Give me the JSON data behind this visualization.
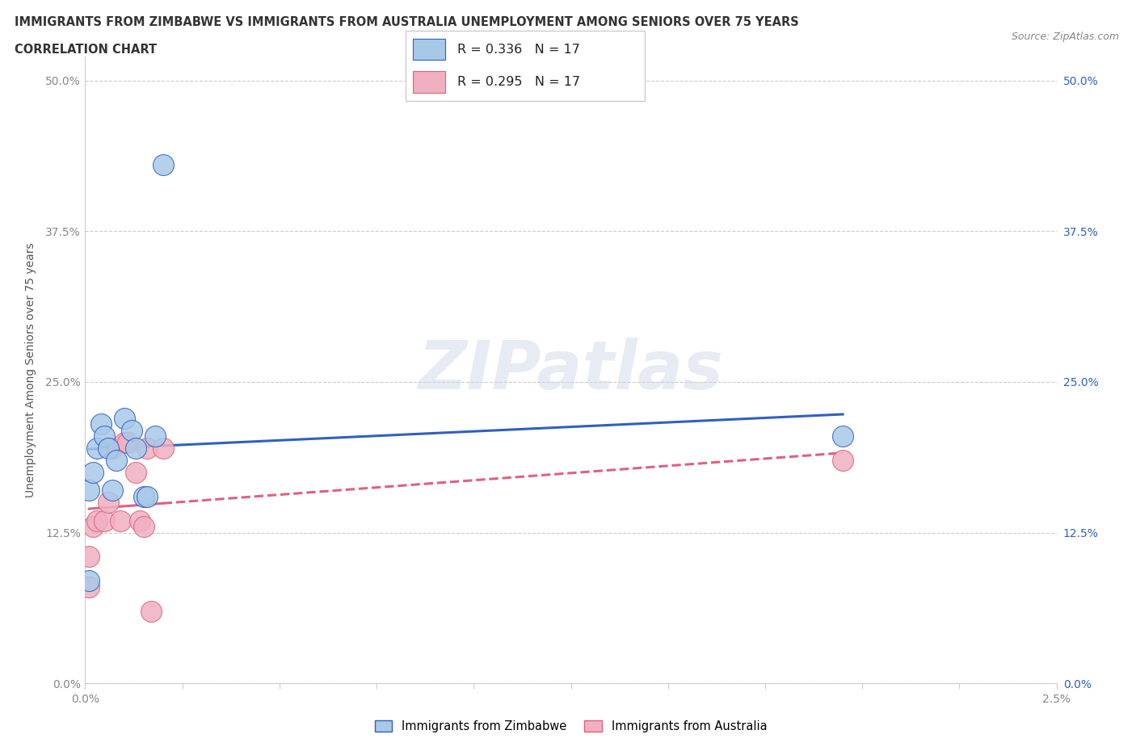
{
  "title_line1": "IMMIGRANTS FROM ZIMBABWE VS IMMIGRANTS FROM AUSTRALIA UNEMPLOYMENT AMONG SENIORS OVER 75 YEARS",
  "title_line2": "CORRELATION CHART",
  "source_text": "Source: ZipAtlas.com",
  "ylabel": "Unemployment Among Seniors over 75 years",
  "watermark": "ZIPatlas",
  "legend_bottom": [
    "Immigrants from Zimbabwe",
    "Immigrants from Australia"
  ],
  "R_zimbabwe": "0.336",
  "N_zimbabwe": "17",
  "R_australia": "0.295",
  "N_australia": "17",
  "zimbabwe_x": [
    0.0001,
    0.0001,
    0.0002,
    0.0003,
    0.0004,
    0.0005,
    0.0006,
    0.0007,
    0.0008,
    0.001,
    0.0012,
    0.0013,
    0.0015,
    0.0016,
    0.0018,
    0.002,
    0.0195
  ],
  "zimbabwe_y": [
    0.085,
    0.16,
    0.175,
    0.195,
    0.215,
    0.205,
    0.195,
    0.16,
    0.185,
    0.22,
    0.21,
    0.195,
    0.155,
    0.155,
    0.205,
    0.43,
    0.205
  ],
  "australia_x": [
    0.0001,
    0.0001,
    0.0002,
    0.0003,
    0.0005,
    0.0006,
    0.0007,
    0.0009,
    0.001,
    0.0011,
    0.0013,
    0.0014,
    0.0015,
    0.0016,
    0.0017,
    0.002,
    0.0195
  ],
  "australia_y": [
    0.08,
    0.105,
    0.13,
    0.135,
    0.135,
    0.15,
    0.195,
    0.135,
    0.2,
    0.2,
    0.175,
    0.135,
    0.13,
    0.195,
    0.06,
    0.195,
    0.185
  ],
  "xmin": 0.0,
  "xmax": 0.025,
  "ymin": 0.0,
  "ymax": 0.52,
  "yticks": [
    0.0,
    0.125,
    0.25,
    0.375,
    0.5
  ],
  "ytick_labels_left": [
    "0.0%",
    "12.5%",
    "25.0%",
    "37.5%",
    "50.0%"
  ],
  "ytick_labels_right": [
    "0.0%",
    "12.5%",
    "25.0%",
    "37.5%",
    "50.0%"
  ],
  "color_zimbabwe": "#a8c8e8",
  "color_australia": "#f0b0c0",
  "line_color_zimbabwe": "#3060c0",
  "line_color_australia": "#e06080",
  "background_color": "#ffffff",
  "grid_color": "#cccccc",
  "title_color": "#333333",
  "source_color": "#888888",
  "tick_color": "#888888",
  "ylabel_color": "#555555"
}
